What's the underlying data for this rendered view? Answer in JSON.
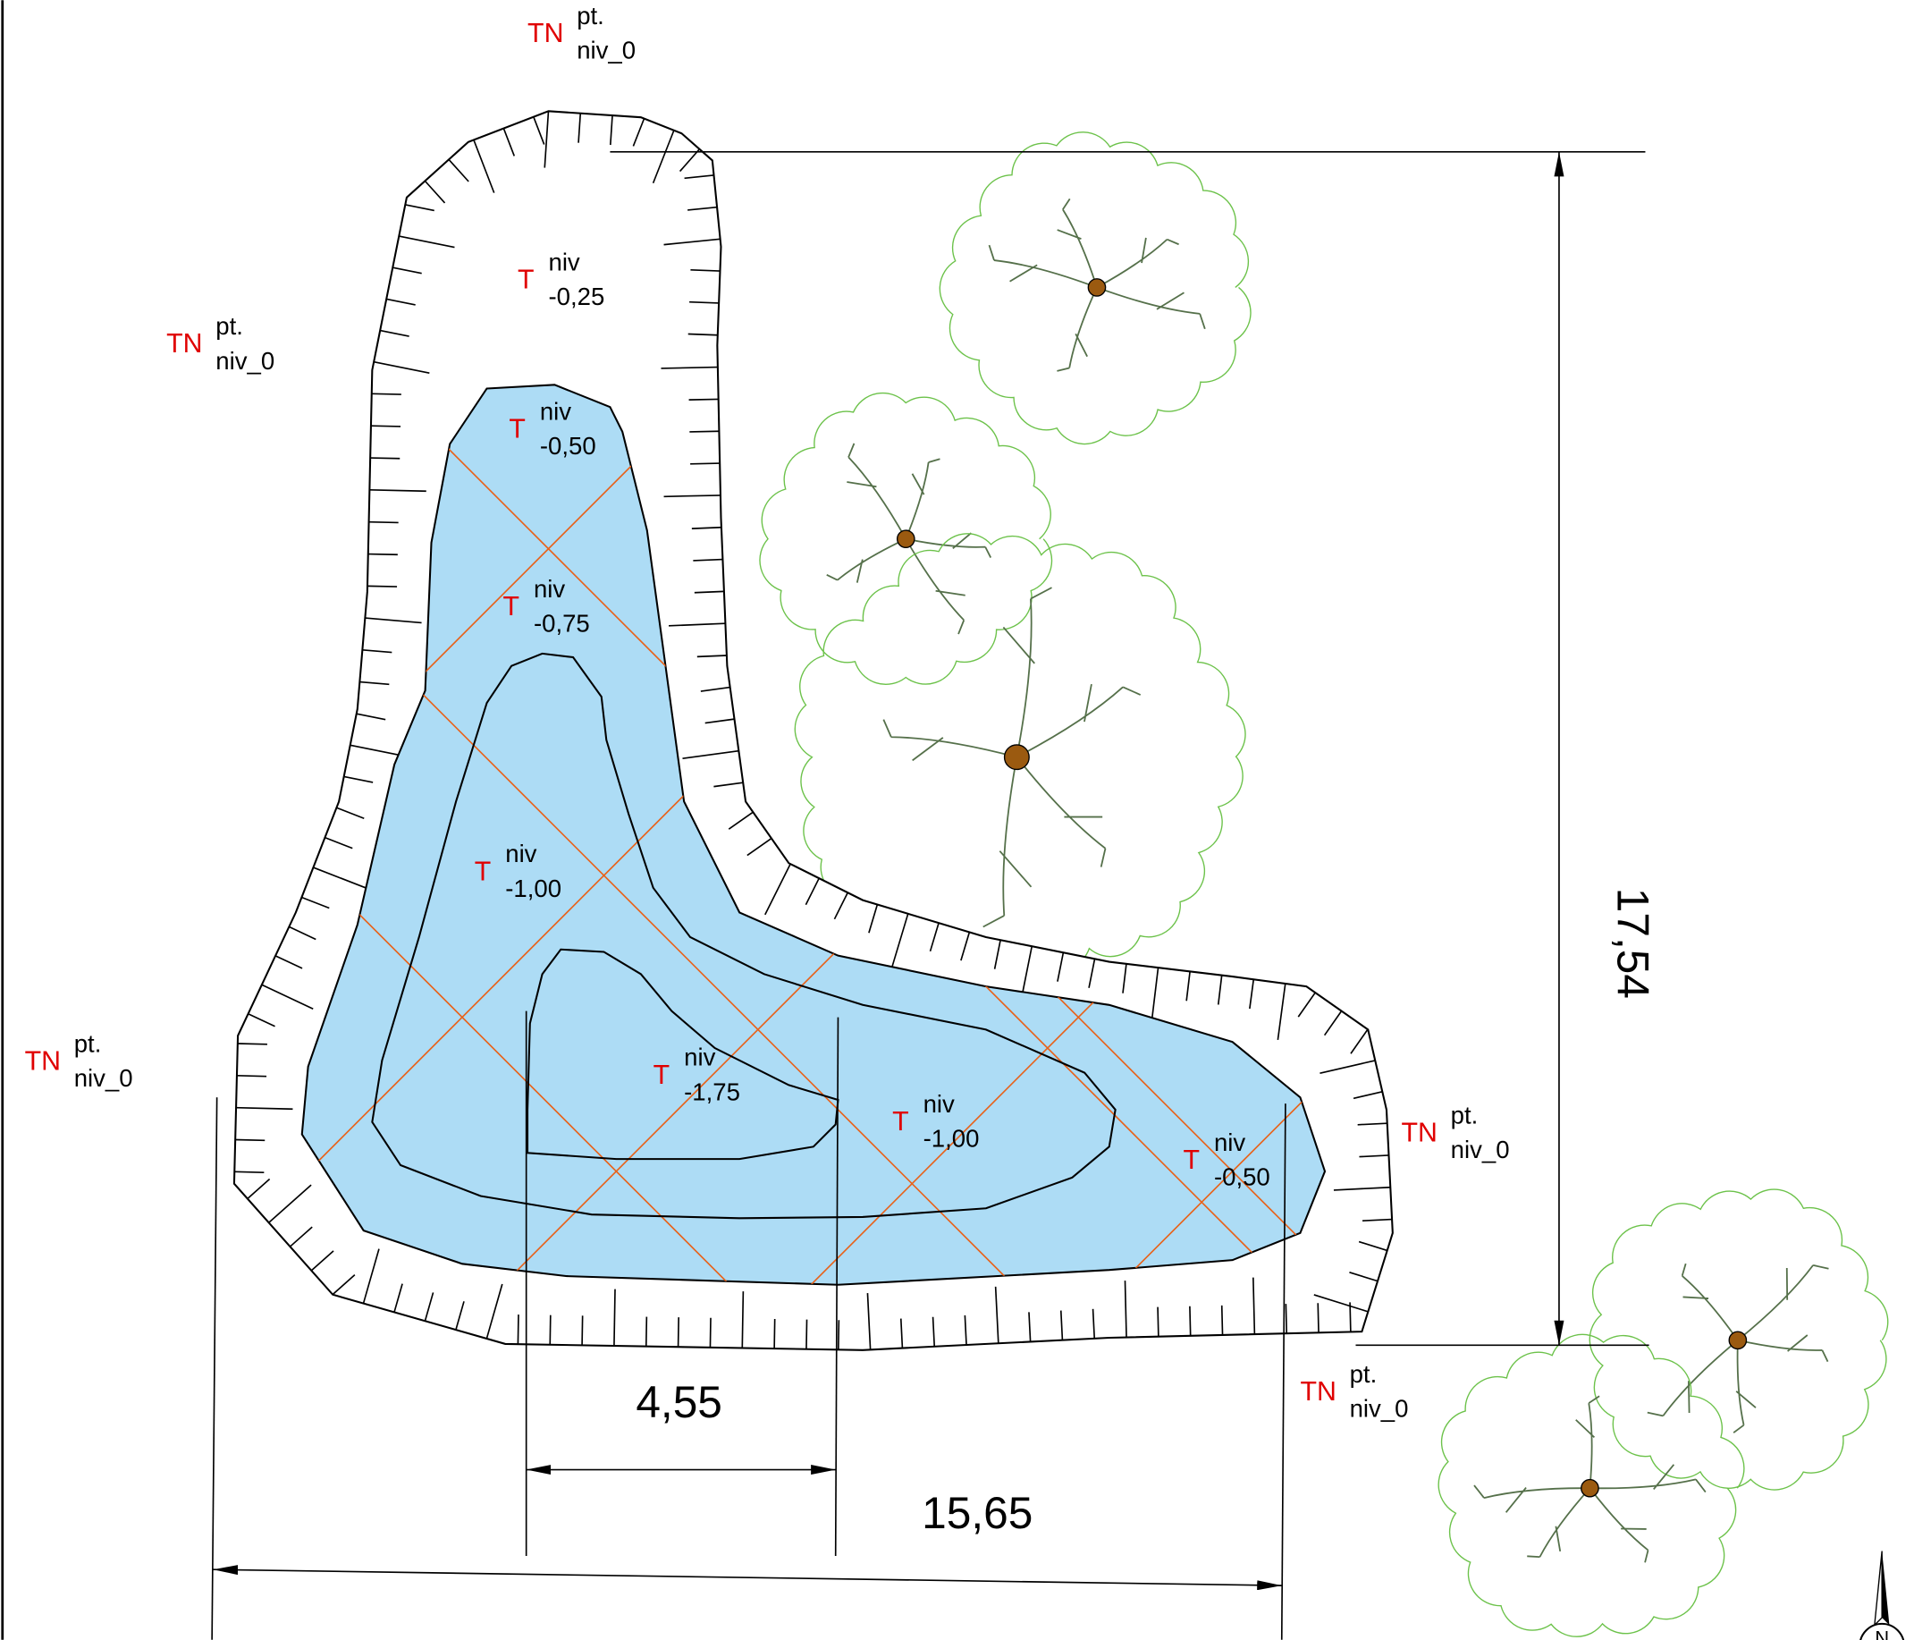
{
  "ground_points": [
    {
      "prefix": "TN",
      "label1": "pt.",
      "label2": "niv_0"
    },
    {
      "prefix": "TN",
      "label1": "pt.",
      "label2": "niv_0"
    },
    {
      "prefix": "TN",
      "label1": "pt.",
      "label2": "niv_0"
    },
    {
      "prefix": "TN",
      "label1": "pt.",
      "label2": "niv_0"
    },
    {
      "prefix": "TN",
      "label1": "pt.",
      "label2": "niv_0"
    }
  ],
  "levels": [
    {
      "prefix": "T",
      "label1": "niv",
      "label2": "-0,25"
    },
    {
      "prefix": "T",
      "label1": "niv",
      "label2": "-0,50"
    },
    {
      "prefix": "T",
      "label1": "niv",
      "label2": "-0,75"
    },
    {
      "prefix": "T",
      "label1": "niv",
      "label2": "-1,00"
    },
    {
      "prefix": "T",
      "label1": "niv",
      "label2": "-1,75"
    },
    {
      "prefix": "T",
      "label1": "niv",
      "label2": "-1,00"
    },
    {
      "prefix": "T",
      "label1": "niv",
      "label2": "-0,50"
    }
  ],
  "dimensions": {
    "height": "17,54",
    "inner_width": "4,55",
    "total_width": "15,65"
  },
  "north": "N"
}
